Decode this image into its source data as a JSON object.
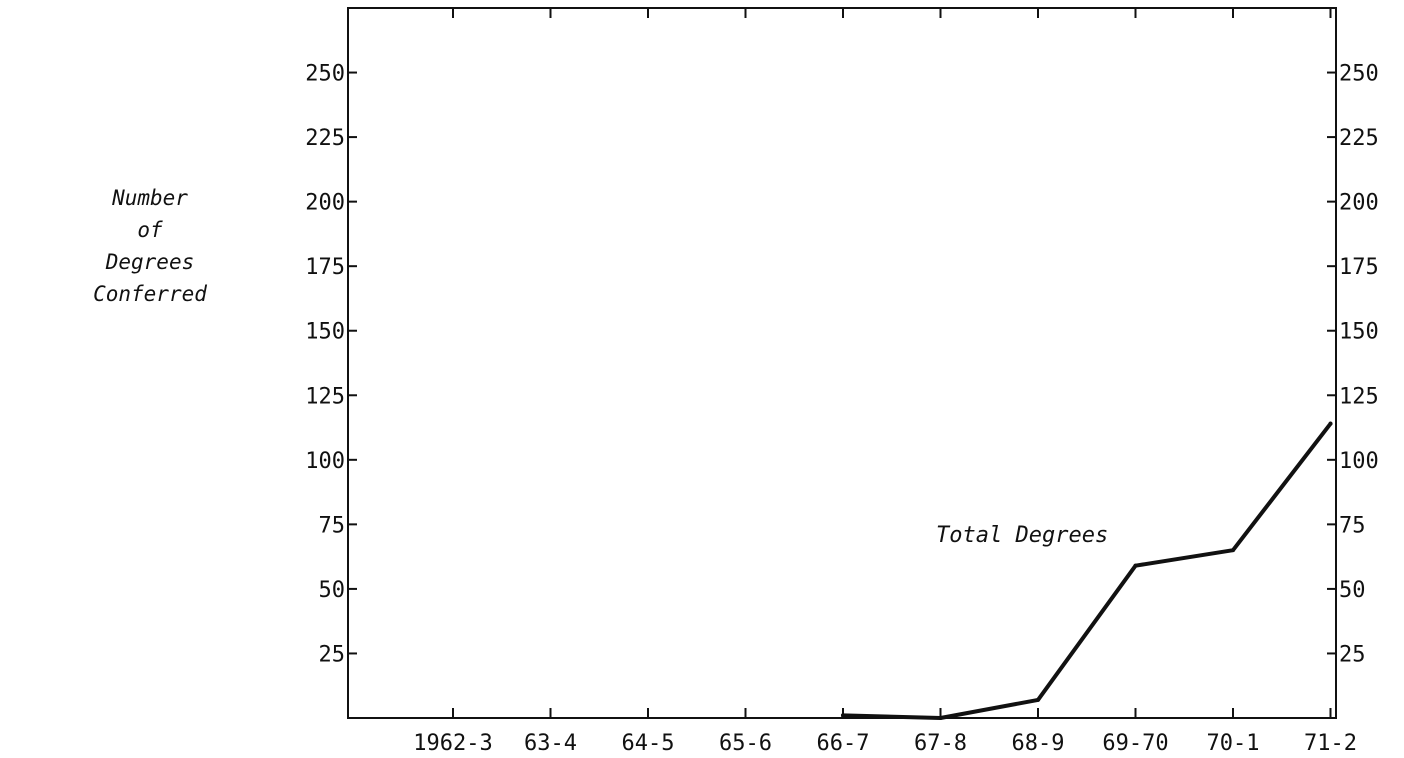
{
  "chart_data": {
    "type": "line",
    "ylabel_lines": [
      "Number",
      "of",
      "Degrees",
      "Conferred"
    ],
    "categories": [
      "1962-3",
      "63-4",
      "64-5",
      "65-6",
      "66-7",
      "67-8",
      "68-9",
      "69-70",
      "70-1",
      "71-2"
    ],
    "ylim": [
      0,
      275
    ],
    "yticks": [
      25,
      50,
      75,
      100,
      125,
      150,
      175,
      200,
      225,
      250
    ],
    "series": [
      {
        "points": [
          {
            "x": "66-7",
            "y": 1
          },
          {
            "x": "67-8",
            "y": 0
          },
          {
            "x": "68-9",
            "y": 7
          },
          {
            "x": "69-70",
            "y": 59
          },
          {
            "x": "70-1",
            "y": 65
          },
          {
            "x": "71-2",
            "y": 114
          }
        ]
      }
    ],
    "annotation": "Total Degrees",
    "grid": false,
    "color": "#111111"
  }
}
